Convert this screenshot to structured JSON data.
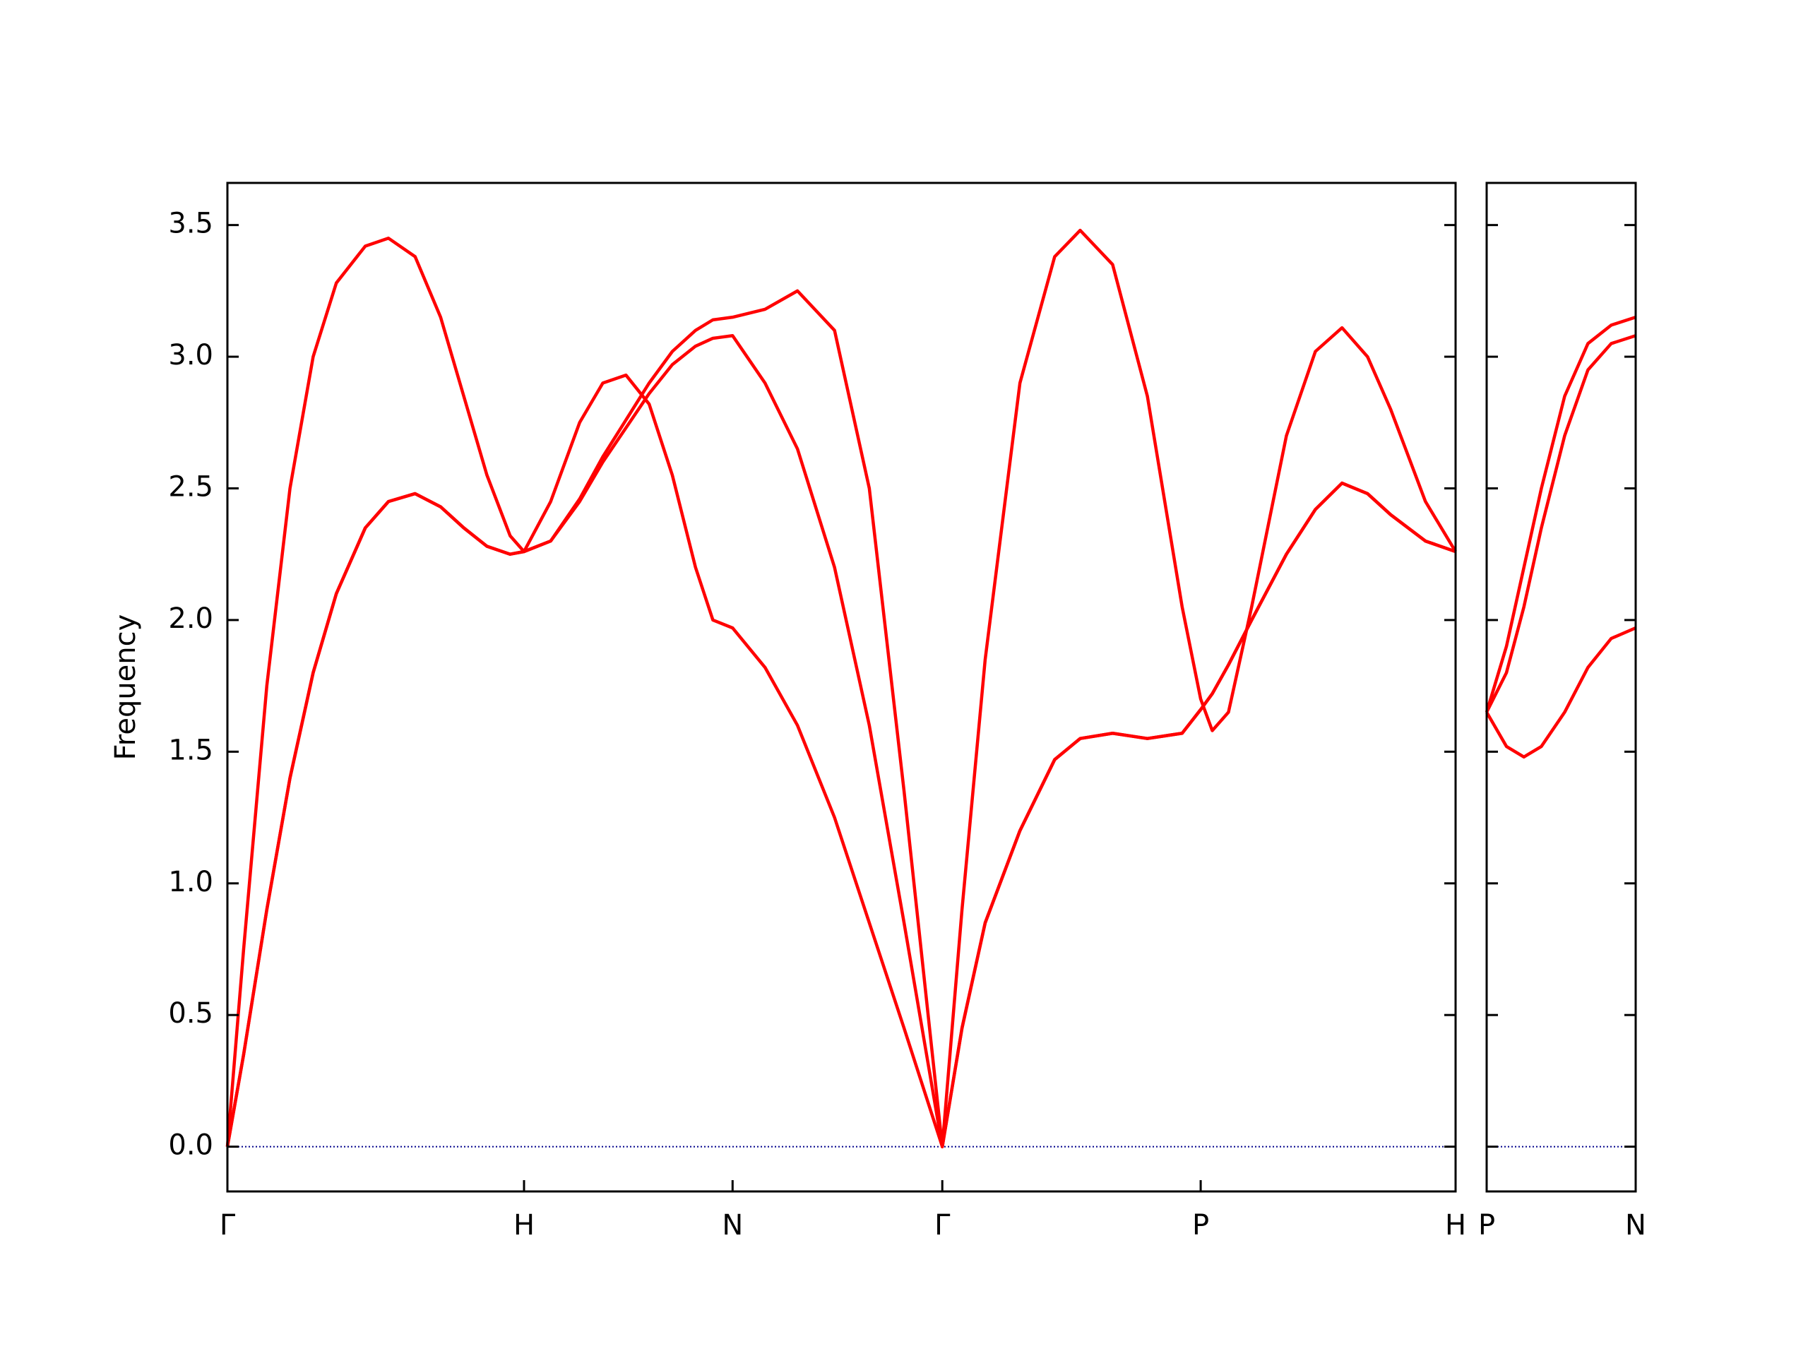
{
  "chart_data": [
    {
      "type": "line",
      "ylabel": "Frequency",
      "x": [
        0,
        0.014,
        0.034,
        0.054,
        0.074,
        0.094,
        0.119,
        0.139,
        0.162,
        0.184,
        0.204,
        0.224,
        0.244,
        0.256,
        0.279,
        0.304,
        0.324,
        0.344,
        0.364,
        0.384,
        0.404,
        0.419,
        0.436,
        0.464,
        0.492,
        0.524,
        0.554,
        0.584,
        0.617,
        0.634,
        0.654,
        0.684,
        0.714,
        0.736,
        0.764,
        0.794,
        0.824,
        0.84,
        0.85,
        0.864,
        0.884,
        0.914,
        0.939,
        0.962,
        0.984,
        1.004,
        1.034,
        1.06
      ],
      "xlim": [
        0,
        1.06
      ],
      "xticks": [
        {
          "value": 0,
          "label": "Γ"
        },
        {
          "value": 0.256,
          "label": "H"
        },
        {
          "value": 0.436,
          "label": "N"
        },
        {
          "value": 0.617,
          "label": "Γ"
        },
        {
          "value": 0.84,
          "label": "P"
        },
        {
          "value": 1.06,
          "label": "H"
        }
      ],
      "ylim": [
        -0.17,
        3.66
      ],
      "yticks": [
        {
          "value": 0,
          "label": "0.0"
        },
        0.5,
        {
          "value": 1,
          "label": "1.0"
        },
        1.5,
        {
          "value": 2,
          "label": "2.0"
        },
        2.5,
        {
          "value": 3,
          "label": "3.0"
        },
        3.5
      ],
      "hline": 0,
      "hline_color": "#00008b",
      "series": [
        {
          "color": "#ff0000",
          "values": [
            0,
            0.35,
            0.9,
            1.4,
            1.8,
            2.1,
            2.35,
            2.45,
            2.48,
            2.43,
            2.35,
            2.28,
            2.25,
            2.26,
            2.3,
            2.45,
            2.6,
            2.73,
            2.86,
            2.97,
            3.04,
            3.07,
            3.08,
            2.9,
            2.65,
            2.2,
            1.6,
            0.85,
            0,
            0.45,
            0.85,
            1.2,
            1.47,
            1.55,
            1.57,
            1.55,
            1.57,
            1.66,
            1.72,
            1.83,
            2.0,
            2.25,
            2.42,
            2.52,
            2.48,
            2.4,
            2.3,
            2.26
          ]
        },
        {
          "color": "#ff0000",
          "values": [
            0,
            0.35,
            0.9,
            1.4,
            1.8,
            2.1,
            2.35,
            2.45,
            2.48,
            2.43,
            2.35,
            2.28,
            2.25,
            2.26,
            2.3,
            2.46,
            2.62,
            2.76,
            2.9,
            3.02,
            3.1,
            3.14,
            3.15,
            3.18,
            3.25,
            3.1,
            2.5,
            1.35,
            0,
            0.45,
            0.85,
            1.2,
            1.47,
            1.55,
            1.57,
            1.55,
            1.57,
            1.66,
            1.72,
            1.83,
            2.0,
            2.25,
            2.42,
            2.52,
            2.48,
            2.4,
            2.3,
            2.26
          ]
        },
        {
          "color": "#ff0000",
          "values": [
            0,
            0.75,
            1.75,
            2.5,
            3.0,
            3.28,
            3.42,
            3.45,
            3.38,
            3.15,
            2.85,
            2.55,
            2.32,
            2.26,
            2.45,
            2.75,
            2.9,
            2.93,
            2.82,
            2.55,
            2.2,
            2.0,
            1.97,
            1.82,
            1.6,
            1.25,
            0.85,
            0.45,
            0,
            0.9,
            1.85,
            2.9,
            3.38,
            3.48,
            3.35,
            2.85,
            2.05,
            1.7,
            1.58,
            1.65,
            2.05,
            2.7,
            3.02,
            3.11,
            3.0,
            2.8,
            2.45,
            2.26
          ]
        }
      ]
    },
    {
      "type": "line",
      "x": [
        0,
        0.017,
        0.032,
        0.047,
        0.067,
        0.087,
        0.107,
        0.128
      ],
      "xlim": [
        0,
        0.128
      ],
      "xticks": [
        {
          "value": 0,
          "label": "P"
        },
        {
          "value": 0.128,
          "label": "N"
        }
      ],
      "ylim": [
        -0.17,
        3.66
      ],
      "yticks": [
        0,
        0.5,
        1,
        1.5,
        2,
        2.5,
        3,
        3.5
      ],
      "hline": 0,
      "hline_color": "#00008b",
      "series": [
        {
          "color": "#ff0000",
          "values": [
            1.65,
            1.52,
            1.48,
            1.52,
            1.65,
            1.82,
            1.93,
            1.97
          ]
        },
        {
          "color": "#ff0000",
          "values": [
            1.65,
            1.8,
            2.05,
            2.35,
            2.7,
            2.95,
            3.05,
            3.08
          ]
        },
        {
          "color": "#ff0000",
          "values": [
            1.65,
            1.9,
            2.2,
            2.5,
            2.85,
            3.05,
            3.12,
            3.15
          ]
        }
      ]
    }
  ]
}
